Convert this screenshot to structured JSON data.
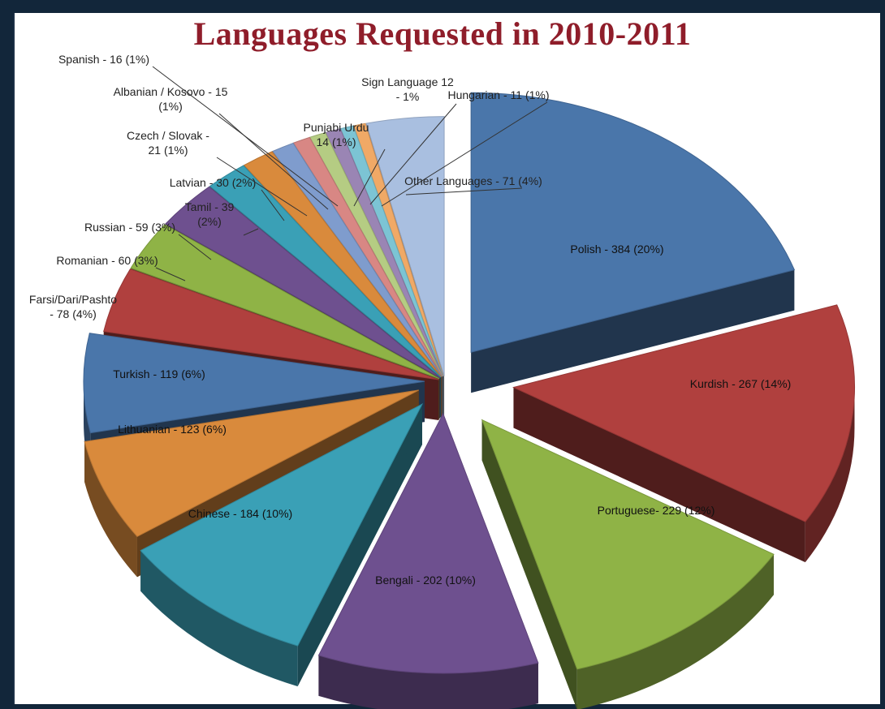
{
  "chart_data": {
    "type": "pie",
    "title": "Languages Requested in 2010-2011",
    "slices": [
      {
        "name": "Polish",
        "value": 384,
        "percent": "20%",
        "color": "#4a76aa"
      },
      {
        "name": "Kurdish",
        "value": 267,
        "percent": "14%",
        "color": "#b0403e"
      },
      {
        "name": "Portuguese",
        "value": 229,
        "percent": "12%",
        "color": "#8fb346"
      },
      {
        "name": "Bengali",
        "value": 202,
        "percent": "10%",
        "color": "#6e508f"
      },
      {
        "name": "Chinese",
        "value": 184,
        "percent": "10%",
        "color": "#3aa0b6"
      },
      {
        "name": "Lithuanian",
        "value": 123,
        "percent": "6%",
        "color": "#d98a3c"
      },
      {
        "name": "Turkish",
        "value": 119,
        "percent": "6%",
        "color": "#4a76aa"
      },
      {
        "name": "Farsi/Dari/Pashto",
        "value": 78,
        "percent": "4%",
        "color": "#b0403e"
      },
      {
        "name": "Romanian",
        "value": 60,
        "percent": "3%",
        "color": "#8fb346"
      },
      {
        "name": "Russian",
        "value": 59,
        "percent": "3%",
        "color": "#6e508f"
      },
      {
        "name": "Tamil",
        "value": 39,
        "percent": "2%",
        "color": "#3aa0b6"
      },
      {
        "name": "Latvian",
        "value": 30,
        "percent": "2%",
        "color": "#d98a3c"
      },
      {
        "name": "Czech / Slovak",
        "value": 21,
        "percent": "1%",
        "color": "#7f9ccd"
      },
      {
        "name": "Spanish",
        "value": 16,
        "percent": "1%",
        "color": "#d88784"
      },
      {
        "name": "Albanian / Kosovo",
        "value": 15,
        "percent": "1%",
        "color": "#b5cc83"
      },
      {
        "name": "Punjabi Urdu",
        "value": 14,
        "percent": "1%",
        "color": "#9a85b4"
      },
      {
        "name": "Sign Language",
        "value": 12,
        "percent": "1%",
        "color": "#7cc4d4"
      },
      {
        "name": "Hungarian",
        "value": 11,
        "percent": "1%",
        "color": "#f0a966"
      },
      {
        "name": "Other Languages",
        "value": 71,
        "percent": "4%",
        "color": "#a9bfe0"
      }
    ],
    "labels": [
      {
        "lines": [
          "Polish - 384 (20%)"
        ]
      },
      {
        "lines": [
          "Kurdish - 267 (14%)"
        ]
      },
      {
        "lines": [
          "Portuguese- 229 (12%)"
        ]
      },
      {
        "lines": [
          "Bengali - 202 (10%)"
        ]
      },
      {
        "lines": [
          "Chinese - 184 (10%)"
        ]
      },
      {
        "lines": [
          "Lithuanian - 123  (6%)"
        ]
      },
      {
        "lines": [
          "Turkish - 119 (6%)"
        ]
      },
      {
        "lines": [
          "Farsi/Dari/Pashto",
          "- 78 (4%)"
        ]
      },
      {
        "lines": [
          "Romanian - 60 (3%)"
        ]
      },
      {
        "lines": [
          "Russian - 59 (3%)"
        ]
      },
      {
        "lines": [
          "Tamil - 39",
          "(2%)"
        ]
      },
      {
        "lines": [
          "Latvian - 30 (2%)"
        ]
      },
      {
        "lines": [
          "Czech / Slovak -",
          "21 (1%)"
        ]
      },
      {
        "lines": [
          "Spanish - 16 (1%)"
        ]
      },
      {
        "lines": [
          "Albanian / Kosovo - 15",
          "(1%)"
        ]
      },
      {
        "lines": [
          "Punjabi Urdu",
          "14 (1%)"
        ]
      },
      {
        "lines": [
          "Sign Language 12",
          "- 1%"
        ]
      },
      {
        "lines": [
          "Hungarian - 11 (1%)"
        ]
      },
      {
        "lines": [
          "Other Languages - 71 (4%)"
        ]
      }
    ]
  }
}
